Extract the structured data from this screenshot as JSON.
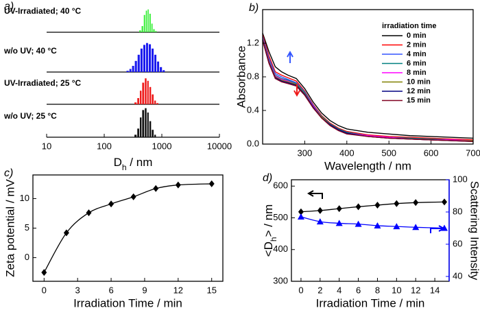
{
  "chart_data": [
    {
      "type": "histogram",
      "title": "a)",
      "xlabel": [
        "D",
        "h",
        " / nm"
      ],
      "log_x": true,
      "xlim": [
        10,
        10000
      ],
      "xticks": [
        10,
        100,
        1000,
        10000
      ],
      "ylim": [
        0,
        50
      ],
      "series": [
        {
          "name": "UV-Irradiated; 40 °C",
          "color": "#33ee33",
          "bins": [
            400,
            440,
            480,
            520,
            560,
            600,
            650,
            700,
            760,
            820
          ],
          "values": [
            3,
            10,
            28,
            35,
            37,
            30,
            14,
            5,
            2
          ]
        },
        {
          "name": "w/o UV; 40 °C",
          "color": "#1a1aee",
          "bins": [
            240,
            270,
            300,
            335,
            375,
            420,
            470,
            525,
            585,
            655,
            730,
            815,
            910,
            1020,
            1140
          ],
          "values": [
            2,
            5,
            10,
            18,
            28,
            38,
            44,
            47,
            45,
            38,
            28,
            17,
            8,
            3
          ]
        },
        {
          "name": "UV-Irradiated; 25 °C",
          "color": "#ee1a1a",
          "bins": [
            330,
            370,
            410,
            450,
            500,
            550,
            600,
            660,
            730,
            800,
            880
          ],
          "values": [
            3,
            10,
            22,
            35,
            42,
            38,
            28,
            16,
            6,
            2
          ]
        },
        {
          "name": "w/o UV; 25 °C",
          "color": "#111111",
          "bins": [
            330,
            370,
            410,
            450,
            500,
            550,
            600,
            660,
            730,
            800
          ],
          "values": [
            4,
            14,
            32,
            44,
            47,
            40,
            26,
            12,
            4
          ]
        }
      ]
    },
    {
      "type": "line",
      "title": "b)",
      "xlabel": "Wavelength / nm",
      "ylabel": "Absorbance",
      "xlim": [
        200,
        700
      ],
      "xticks": [
        300,
        400,
        500,
        600,
        700
      ],
      "ylim": [
        0,
        1.6
      ],
      "yticks": [
        {
          "value": 0,
          "label": "0.0"
        },
        {
          "value": 0.4,
          "label": "0.4"
        },
        {
          "value": 0.8,
          "label": "0.8"
        },
        {
          "value": 1.2,
          "label": "1.2"
        }
      ],
      "legend_title": "irradiation time",
      "legend": "upper right",
      "x": [
        200,
        215,
        230,
        245,
        260,
        280,
        300,
        320,
        340,
        360,
        380,
        400,
        450,
        500,
        550,
        600,
        650,
        700
      ],
      "series": [
        {
          "name": "0 min",
          "color": "#000000",
          "values": [
            1.32,
            1.1,
            0.92,
            0.86,
            0.82,
            0.78,
            0.66,
            0.5,
            0.37,
            0.28,
            0.22,
            0.18,
            0.14,
            0.12,
            0.1,
            0.09,
            0.08,
            0.07
          ]
        },
        {
          "name": "2 min",
          "color": "#ff0000",
          "values": [
            1.3,
            1.05,
            0.86,
            0.82,
            0.79,
            0.75,
            0.63,
            0.47,
            0.34,
            0.25,
            0.19,
            0.15,
            0.11,
            0.09,
            0.08,
            0.07,
            0.06,
            0.05
          ]
        },
        {
          "name": "4 min",
          "color": "#3355ff",
          "values": [
            1.28,
            1.02,
            0.84,
            0.8,
            0.77,
            0.73,
            0.62,
            0.46,
            0.33,
            0.24,
            0.18,
            0.14,
            0.1,
            0.08,
            0.07,
            0.06,
            0.05,
            0.04
          ]
        },
        {
          "name": "6 min",
          "color": "#008080",
          "values": [
            1.27,
            1.0,
            0.82,
            0.78,
            0.76,
            0.72,
            0.61,
            0.45,
            0.33,
            0.24,
            0.18,
            0.14,
            0.1,
            0.08,
            0.07,
            0.06,
            0.05,
            0.04
          ]
        },
        {
          "name": "8 min",
          "color": "#ff00ff",
          "values": [
            1.26,
            0.99,
            0.81,
            0.77,
            0.75,
            0.71,
            0.6,
            0.45,
            0.32,
            0.23,
            0.17,
            0.13,
            0.1,
            0.08,
            0.06,
            0.05,
            0.05,
            0.04
          ]
        },
        {
          "name": "10 min",
          "color": "#808000",
          "values": [
            1.25,
            0.98,
            0.8,
            0.76,
            0.74,
            0.71,
            0.6,
            0.44,
            0.32,
            0.23,
            0.17,
            0.13,
            0.09,
            0.07,
            0.06,
            0.05,
            0.04,
            0.04
          ]
        },
        {
          "name": "12 min",
          "color": "#000080",
          "values": [
            1.24,
            0.97,
            0.79,
            0.75,
            0.73,
            0.7,
            0.59,
            0.44,
            0.31,
            0.23,
            0.17,
            0.13,
            0.09,
            0.07,
            0.06,
            0.05,
            0.04,
            0.03
          ]
        },
        {
          "name": "15 min",
          "color": "#800020",
          "values": [
            1.23,
            0.96,
            0.78,
            0.74,
            0.72,
            0.69,
            0.58,
            0.43,
            0.31,
            0.22,
            0.16,
            0.12,
            0.09,
            0.07,
            0.06,
            0.05,
            0.04,
            0.03
          ]
        }
      ]
    },
    {
      "type": "line",
      "title": "c)",
      "xlabel": "Irradiation Time / min",
      "ylabel": "Zeta potential / mV",
      "xlim": [
        -1,
        16
      ],
      "xticks": [
        0,
        3,
        6,
        9,
        12,
        15
      ],
      "ylim": [
        -4,
        14
      ],
      "yticks": [
        0,
        5,
        10
      ],
      "x": [
        0,
        2,
        4,
        6,
        8,
        10,
        12,
        15
      ],
      "series": [
        {
          "color": "#000000",
          "marker": "diamond",
          "values": [
            -2.5,
            4.2,
            7.6,
            9.1,
            10.3,
            11.7,
            12.3,
            12.5
          ]
        }
      ]
    },
    {
      "type": "line",
      "title": "d)",
      "xlabel": "Irradiation Time / min",
      "ylabel": [
        "<D",
        "h",
        "> / nm"
      ],
      "y2label": "Scattering Intensity",
      "xlim": [
        -1,
        15.5
      ],
      "xticks": [
        0,
        2,
        4,
        6,
        8,
        10,
        12,
        14
      ],
      "ylim": [
        300,
        620
      ],
      "yticks": [
        300,
        400,
        500,
        600
      ],
      "y2lim": [
        37,
        100
      ],
      "y2ticks": [
        40,
        60,
        80,
        100
      ],
      "y2color": "#0000ff",
      "x": [
        0,
        2,
        4,
        6,
        8,
        10,
        12,
        15
      ],
      "series": [
        {
          "color": "#000000",
          "marker": "diamond",
          "values": [
            519,
            523,
            529,
            535,
            540,
            545,
            548,
            550
          ]
        },
        {
          "color": "#0000ff",
          "marker": "triangle",
          "axis": "y2",
          "values": [
            77,
            74,
            73,
            72.5,
            71.5,
            71,
            70.5,
            70
          ]
        }
      ]
    }
  ]
}
